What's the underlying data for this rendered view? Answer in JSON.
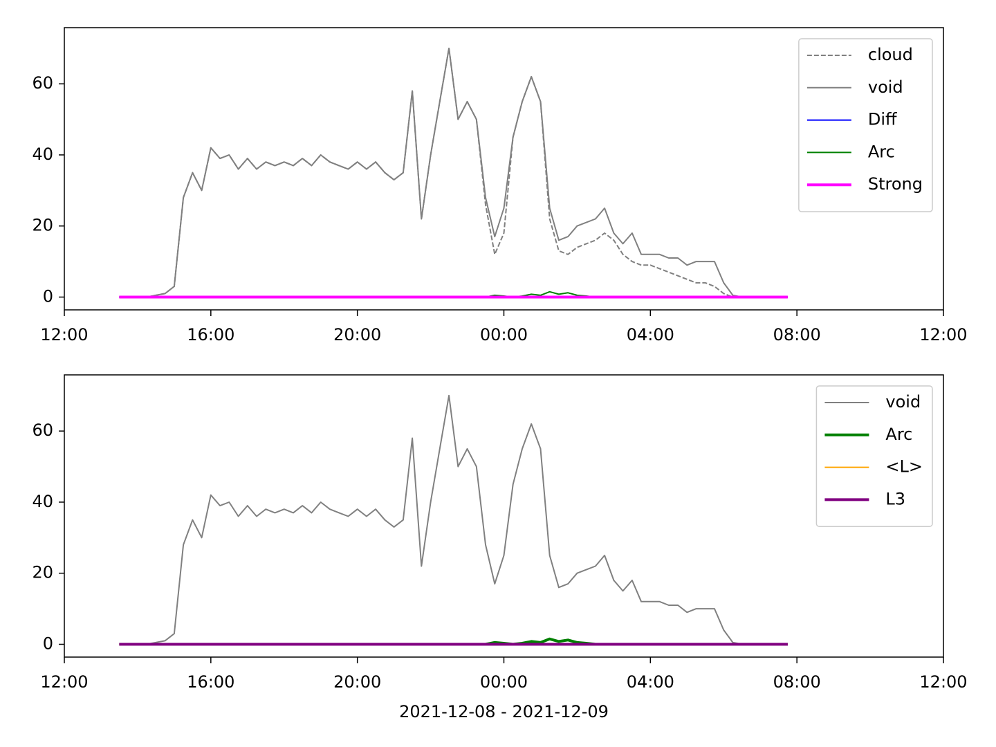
{
  "chart_data": [
    {
      "type": "line",
      "x": [
        "13:30",
        "13:45",
        "14:00",
        "14:15",
        "14:30",
        "14:45",
        "15:00",
        "15:15",
        "15:30",
        "15:45",
        "16:00",
        "16:15",
        "16:30",
        "16:45",
        "17:00",
        "17:15",
        "17:30",
        "17:45",
        "18:00",
        "18:15",
        "18:30",
        "18:45",
        "19:00",
        "19:15",
        "19:30",
        "19:45",
        "20:00",
        "20:15",
        "20:30",
        "20:45",
        "21:00",
        "21:15",
        "21:30",
        "21:45",
        "22:00",
        "22:15",
        "22:30",
        "22:45",
        "23:00",
        "23:15",
        "23:30",
        "23:45",
        "00:00",
        "00:15",
        "00:30",
        "00:45",
        "01:00",
        "01:15",
        "01:30",
        "01:45",
        "02:00",
        "02:15",
        "02:30",
        "02:45",
        "03:00",
        "03:15",
        "03:30",
        "03:45",
        "04:00",
        "04:15",
        "04:30",
        "04:45",
        "05:00",
        "05:15",
        "05:30",
        "05:45",
        "06:00",
        "06:15",
        "06:30",
        "06:45",
        "07:00",
        "07:15",
        "07:30",
        "07:45"
      ],
      "series": [
        {
          "name": "cloud",
          "color": "#808080",
          "linestyle": "dashed",
          "linewidth": 2,
          "values": [
            0,
            0,
            0,
            0,
            0.5,
            1,
            3,
            28,
            35,
            30,
            42,
            39,
            40,
            36,
            39,
            36,
            38,
            37,
            38,
            37,
            39,
            37,
            40,
            38,
            37,
            36,
            38,
            36,
            38,
            35,
            33,
            35,
            58,
            22,
            40,
            55,
            70,
            50,
            55,
            50,
            26,
            12,
            18,
            45,
            55,
            62,
            55,
            22,
            13,
            12,
            14,
            15,
            16,
            18,
            16,
            12,
            10,
            9,
            9,
            8,
            7,
            6,
            5,
            4,
            4,
            3,
            1,
            0,
            0,
            0,
            0,
            0,
            0,
            0
          ]
        },
        {
          "name": "void",
          "color": "#808080",
          "linestyle": "solid",
          "linewidth": 2,
          "values": [
            0,
            0,
            0,
            0,
            0.5,
            1,
            3,
            28,
            35,
            30,
            42,
            39,
            40,
            36,
            39,
            36,
            38,
            37,
            38,
            37,
            39,
            37,
            40,
            38,
            37,
            36,
            38,
            36,
            38,
            35,
            33,
            35,
            58,
            22,
            40,
            55,
            70,
            50,
            55,
            50,
            28,
            17,
            25,
            45,
            55,
            62,
            55,
            25,
            16,
            17,
            20,
            21,
            22,
            25,
            18,
            15,
            18,
            12,
            12,
            12,
            11,
            11,
            9,
            10,
            10,
            10,
            4,
            0.5,
            0,
            0,
            0,
            0,
            0,
            0
          ]
        },
        {
          "name": "Diff",
          "color": "#0000ff",
          "linestyle": "solid",
          "linewidth": 2,
          "values": [
            0,
            0,
            0,
            0,
            0,
            0,
            0,
            0,
            0,
            0,
            0,
            0,
            0,
            0,
            0,
            0,
            0,
            0,
            0,
            0,
            0,
            0,
            0,
            0,
            0,
            0,
            0,
            0,
            0,
            0,
            0,
            0,
            0,
            0,
            0,
            0,
            0,
            0,
            0,
            0,
            0,
            0,
            0,
            0,
            0,
            0,
            0,
            0,
            0,
            0,
            0,
            0,
            0,
            0,
            0,
            0,
            0,
            0,
            0,
            0,
            0,
            0,
            0,
            0,
            0,
            0,
            0,
            0,
            0,
            0,
            0,
            0,
            0,
            0
          ]
        },
        {
          "name": "Arc",
          "color": "#008000",
          "linestyle": "solid",
          "linewidth": 2,
          "values": [
            0,
            0,
            0,
            0,
            0,
            0,
            0,
            0,
            0,
            0,
            0,
            0,
            0,
            0,
            0,
            0,
            0,
            0,
            0,
            0,
            0,
            0,
            0,
            0,
            0,
            0,
            0,
            0,
            0,
            0,
            0,
            0,
            0,
            0,
            0,
            0,
            0,
            0,
            0,
            0,
            0,
            0.5,
            0.3,
            0,
            0.3,
            0.8,
            0.5,
            1.5,
            0.8,
            1.2,
            0.5,
            0.3,
            0,
            0,
            0,
            0,
            0,
            0,
            0,
            0,
            0,
            0,
            0,
            0,
            0,
            0,
            0,
            0,
            0,
            0,
            0,
            0,
            0,
            0
          ]
        },
        {
          "name": "Strong",
          "color": "#ff00ff",
          "linestyle": "solid",
          "linewidth": 4,
          "values": [
            0,
            0,
            0,
            0,
            0,
            0,
            0,
            0,
            0,
            0,
            0,
            0,
            0,
            0,
            0,
            0,
            0,
            0,
            0,
            0,
            0,
            0,
            0,
            0,
            0,
            0,
            0,
            0,
            0,
            0,
            0,
            0,
            0,
            0,
            0,
            0,
            0,
            0,
            0,
            0,
            0,
            0,
            0,
            0,
            0,
            0,
            0,
            0,
            0,
            0,
            0,
            0,
            0,
            0,
            0,
            0,
            0,
            0,
            0,
            0,
            0,
            0,
            0,
            0,
            0,
            0,
            0,
            0,
            0,
            0,
            0,
            0,
            0,
            0
          ]
        }
      ],
      "xlim": [
        "12:00",
        "12:00"
      ],
      "xticks": [
        "12:00",
        "16:00",
        "20:00",
        "00:00",
        "04:00",
        "08:00",
        "12:00"
      ],
      "ylim": [
        -3.6,
        75.8
      ],
      "yticks": [
        0,
        20,
        40,
        60
      ],
      "legend": "upper right"
    },
    {
      "type": "line",
      "x": [
        "13:30",
        "13:45",
        "14:00",
        "14:15",
        "14:30",
        "14:45",
        "15:00",
        "15:15",
        "15:30",
        "15:45",
        "16:00",
        "16:15",
        "16:30",
        "16:45",
        "17:00",
        "17:15",
        "17:30",
        "17:45",
        "18:00",
        "18:15",
        "18:30",
        "18:45",
        "19:00",
        "19:15",
        "19:30",
        "19:45",
        "20:00",
        "20:15",
        "20:30",
        "20:45",
        "21:00",
        "21:15",
        "21:30",
        "21:45",
        "22:00",
        "22:15",
        "22:30",
        "22:45",
        "23:00",
        "23:15",
        "23:30",
        "23:45",
        "00:00",
        "00:15",
        "00:30",
        "00:45",
        "01:00",
        "01:15",
        "01:30",
        "01:45",
        "02:00",
        "02:15",
        "02:30",
        "02:45",
        "03:00",
        "03:15",
        "03:30",
        "03:45",
        "04:00",
        "04:15",
        "04:30",
        "04:45",
        "05:00",
        "05:15",
        "05:30",
        "05:45",
        "06:00",
        "06:15",
        "06:30",
        "06:45",
        "07:00",
        "07:15",
        "07:30",
        "07:45"
      ],
      "series": [
        {
          "name": "void",
          "color": "#808080",
          "linestyle": "solid",
          "linewidth": 2,
          "values": [
            0,
            0,
            0,
            0,
            0.5,
            1,
            3,
            28,
            35,
            30,
            42,
            39,
            40,
            36,
            39,
            36,
            38,
            37,
            38,
            37,
            39,
            37,
            40,
            38,
            37,
            36,
            38,
            36,
            38,
            35,
            33,
            35,
            58,
            22,
            40,
            55,
            70,
            50,
            55,
            50,
            28,
            17,
            25,
            45,
            55,
            62,
            55,
            25,
            16,
            17,
            20,
            21,
            22,
            25,
            18,
            15,
            18,
            12,
            12,
            12,
            11,
            11,
            9,
            10,
            10,
            10,
            4,
            0.5,
            0,
            0,
            0,
            0,
            0,
            0
          ]
        },
        {
          "name": "Arc",
          "color": "#008000",
          "linestyle": "solid",
          "linewidth": 4,
          "values": [
            0,
            0,
            0,
            0,
            0,
            0,
            0,
            0,
            0,
            0,
            0,
            0,
            0,
            0,
            0,
            0,
            0,
            0,
            0,
            0,
            0,
            0,
            0,
            0,
            0,
            0,
            0,
            0,
            0,
            0,
            0,
            0,
            0,
            0,
            0,
            0,
            0,
            0,
            0,
            0,
            0,
            0.5,
            0.3,
            0,
            0.3,
            0.8,
            0.5,
            1.5,
            0.8,
            1.2,
            0.5,
            0.3,
            0,
            0,
            0,
            0,
            0,
            0,
            0,
            0,
            0,
            0,
            0,
            0,
            0,
            0,
            0,
            0,
            0,
            0,
            0,
            0,
            0,
            0
          ]
        },
        {
          "name": "<L>",
          "color": "#ffa500",
          "linestyle": "solid",
          "linewidth": 2,
          "values": [
            0,
            0,
            0,
            0,
            0,
            0,
            0,
            0,
            0,
            0,
            0,
            0,
            0,
            0,
            0,
            0,
            0,
            0,
            0,
            0,
            0,
            0,
            0,
            0,
            0,
            0,
            0,
            0,
            0,
            0,
            0,
            0,
            0,
            0,
            0,
            0,
            0,
            0,
            0,
            0,
            0,
            0,
            0,
            0,
            0,
            0,
            0,
            0,
            0,
            0,
            0,
            0,
            0,
            0,
            0,
            0,
            0,
            0,
            0,
            0,
            0,
            0,
            0,
            0,
            0,
            0,
            0,
            0,
            0,
            0,
            0,
            0,
            0,
            0
          ]
        },
        {
          "name": "L3",
          "color": "#800080",
          "linestyle": "solid",
          "linewidth": 4,
          "values": [
            0,
            0,
            0,
            0,
            0,
            0,
            0,
            0,
            0,
            0,
            0,
            0,
            0,
            0,
            0,
            0,
            0,
            0,
            0,
            0,
            0,
            0,
            0,
            0,
            0,
            0,
            0,
            0,
            0,
            0,
            0,
            0,
            0,
            0,
            0,
            0,
            0,
            0,
            0,
            0,
            0,
            0,
            0,
            0,
            0,
            0,
            0,
            0,
            0,
            0,
            0,
            0,
            0,
            0,
            0,
            0,
            0,
            0,
            0,
            0,
            0,
            0,
            0,
            0,
            0,
            0,
            0,
            0,
            0,
            0,
            0,
            0,
            0,
            0
          ]
        }
      ],
      "xlim": [
        "12:00",
        "12:00"
      ],
      "xticks": [
        "12:00",
        "16:00",
        "20:00",
        "00:00",
        "04:00",
        "08:00",
        "12:00"
      ],
      "ylim": [
        -3.6,
        75.8
      ],
      "yticks": [
        0,
        20,
        40,
        60
      ],
      "legend": "upper right",
      "xlabel": "2021-12-08 - 2021-12-09"
    }
  ]
}
